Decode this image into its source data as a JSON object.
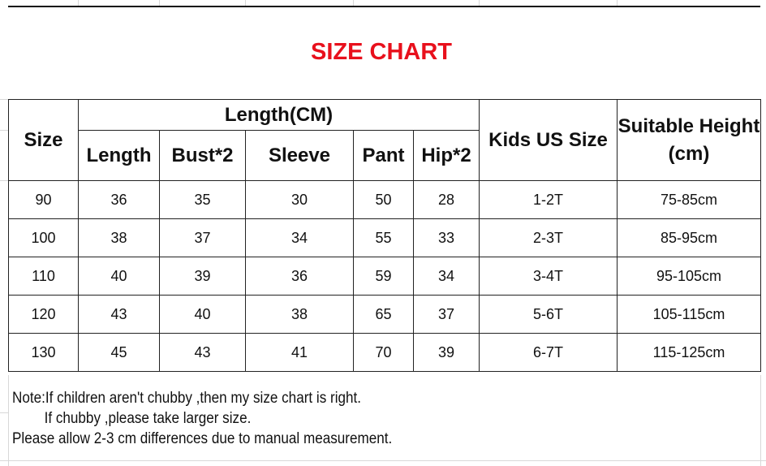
{
  "title": "SIZE CHART",
  "title_color": "#e8101c",
  "headers": {
    "size": "Size",
    "group": "Length(CM)",
    "sub": [
      "Length",
      "Bust*2",
      "Sleeve",
      "Pant",
      "Hip*2"
    ],
    "kids_us": "Kids US Size",
    "height": "Suitable Height (cm)"
  },
  "rows": [
    [
      "90",
      "36",
      "35",
      "30",
      "50",
      "28",
      "1-2T",
      "75-85cm"
    ],
    [
      "100",
      "38",
      "37",
      "34",
      "55",
      "33",
      "2-3T",
      "85-95cm"
    ],
    [
      "110",
      "40",
      "39",
      "36",
      "59",
      "34",
      "3-4T",
      "95-105cm"
    ],
    [
      "120",
      "43",
      "40",
      "38",
      "65",
      "37",
      "5-6T",
      "105-115cm"
    ],
    [
      "130",
      "45",
      "43",
      "41",
      "70",
      "39",
      "6-7T",
      "115-125cm"
    ]
  ],
  "note": [
    "Note:If children aren't chubby ,then my size chart is right.",
    "If chubby ,please take larger size.",
    "Please allow 2-3 cm differences due to manual measurement."
  ]
}
